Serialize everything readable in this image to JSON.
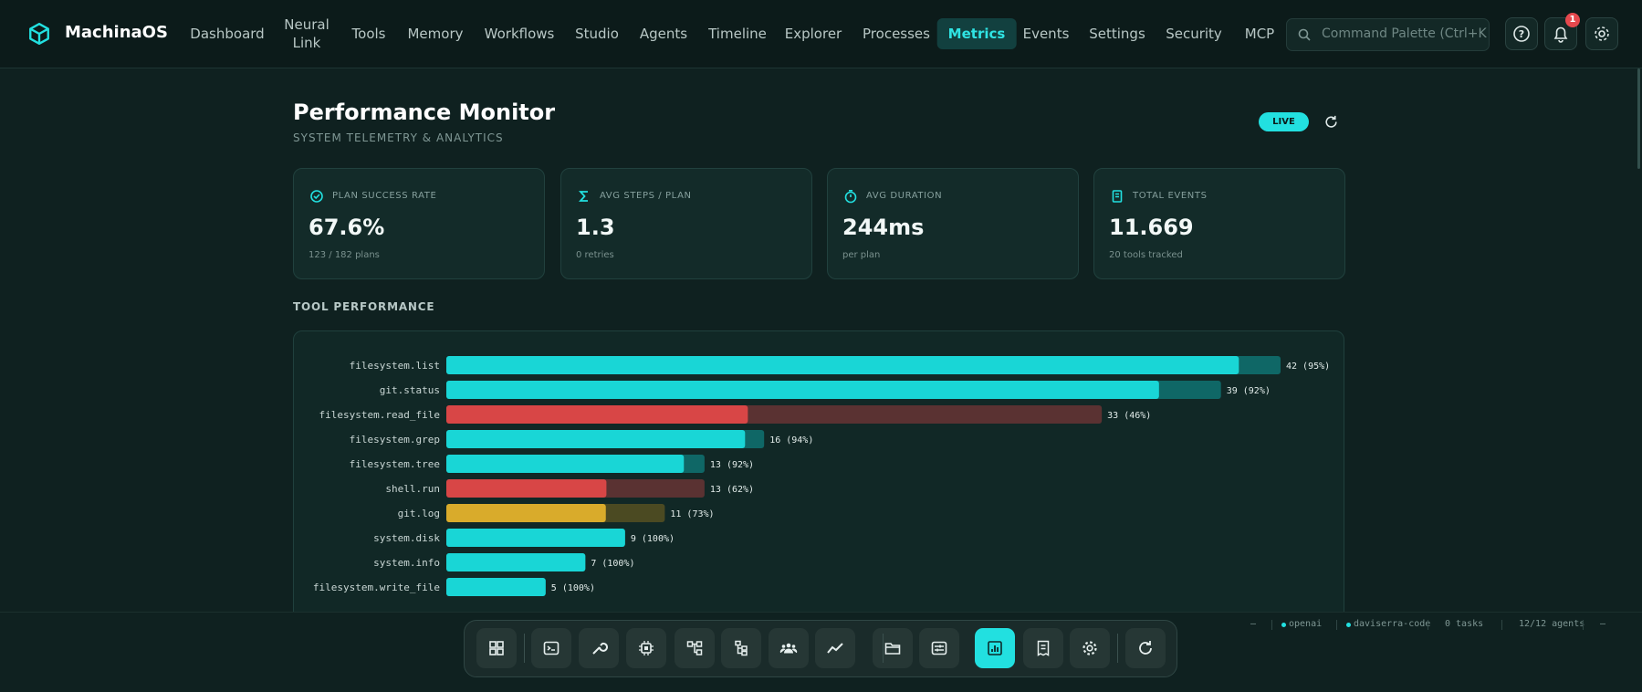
{
  "nav": {
    "brand": "MachinaOS",
    "items": [
      "Dashboard",
      "Neural Link",
      "Tools",
      "Memory",
      "Workflows",
      "Studio",
      "Agents",
      "Timeline",
      "Explorer",
      "Processes",
      "Metrics",
      "Events",
      "Settings",
      "Security",
      "MCP"
    ],
    "active": "Metrics",
    "search_placeholder": "Command Palette (Ctrl+K",
    "notification_count": "1"
  },
  "header": {
    "title": "Performance Monitor",
    "subtitle": "SYSTEM TELEMETRY & ANALYTICS",
    "live_badge": "LIVE"
  },
  "stats": [
    {
      "label": "PLAN SUCCESS RATE",
      "value": "67.6%",
      "sub": "123 / 182 plans"
    },
    {
      "label": "AVG STEPS / PLAN",
      "value": "1.3",
      "sub": "0 retries"
    },
    {
      "label": "AVG DURATION",
      "value": "244ms",
      "sub": "per plan"
    },
    {
      "label": "TOTAL EVENTS",
      "value": "11.669",
      "sub": "20 tools tracked"
    }
  ],
  "section_title": "TOOL PERFORMANCE",
  "chart_data": {
    "type": "bar",
    "orientation": "horizontal",
    "categories": [
      "filesystem.list",
      "git.status",
      "filesystem.read_file",
      "filesystem.grep",
      "filesystem.tree",
      "shell.run",
      "git.log",
      "system.disk",
      "system.info",
      "filesystem.write_file"
    ],
    "values": [
      42,
      39,
      33,
      16,
      13,
      13,
      11,
      9,
      7,
      5
    ],
    "success_rate": [
      95,
      92,
      46,
      94,
      92,
      62,
      73,
      100,
      100,
      100
    ],
    "value_labels": [
      "42 (95%)",
      "39 (92%)",
      "33 (46%)",
      "16 (94%)",
      "13 (92%)",
      "13 (62%)",
      "11 (73%)",
      "9 (100%)",
      "7 (100%)",
      "5 (100%)"
    ],
    "colors": [
      "#19d6d6",
      "#19d6d6",
      "#d84646",
      "#19d6d6",
      "#19d6d6",
      "#d84646",
      "#d9ab2b",
      "#19d6d6",
      "#19d6d6",
      "#19d6d6"
    ],
    "track_colors": [
      "#0f6766",
      "#0f6766",
      "#5a3232",
      "#0f6766",
      "#0f6766",
      "#5a3232",
      "#4b4a22",
      "#0f6766",
      "#0f6766",
      "#0f6766"
    ]
  },
  "status_bar": [
    "—",
    "openai",
    "daviserra-code",
    "0 tasks",
    "12/12 agents",
    "—"
  ]
}
